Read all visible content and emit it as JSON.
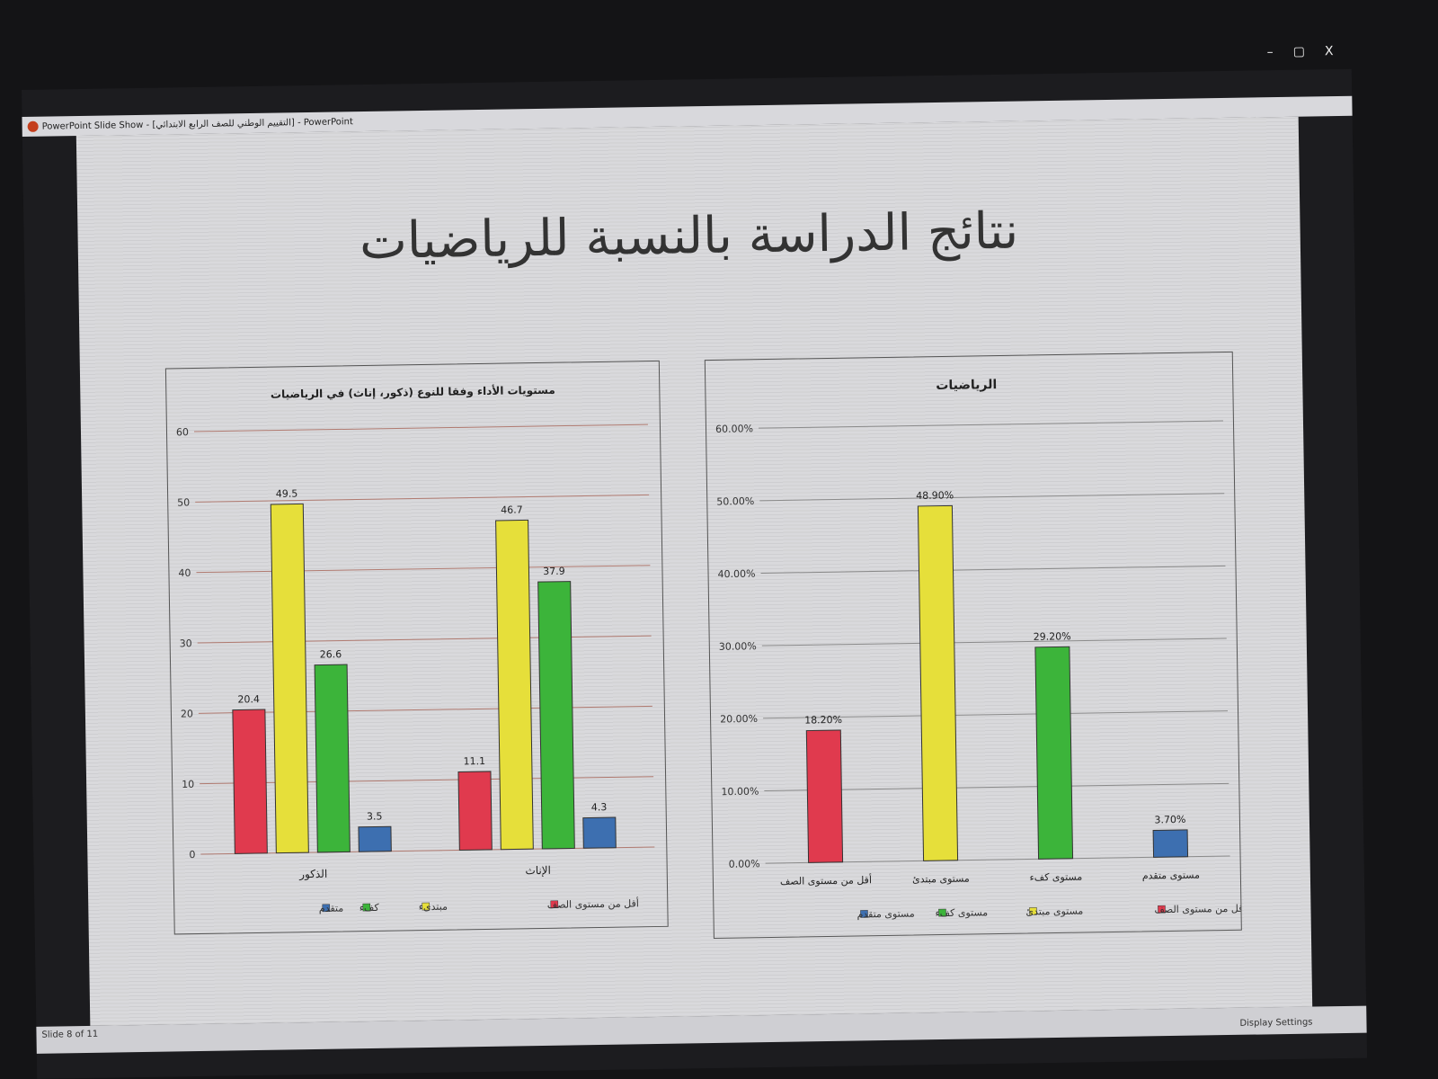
{
  "window": {
    "title": "PowerPoint Slide Show - [التقييم الوطني للصف الرابع الابتدائي] - PowerPoint",
    "minimize": "–",
    "restore": "▢",
    "close": "X"
  },
  "slide": {
    "title": "نتائج الدراسة بالنسبة للرياضيات"
  },
  "status": {
    "slide_counter": "Slide 8 of 11",
    "display_settings": "Display Settings"
  },
  "colors": {
    "red": "#e03a4e",
    "yellow": "#e6df3a",
    "green": "#3cb43a",
    "blue": "#3d6fb0"
  },
  "chart_data": [
    {
      "type": "bar",
      "title": "مستويات الأداء وفقا للنوع (ذكور، إناث) في الرياضيات",
      "categories": [
        "الذكور",
        "الإناث"
      ],
      "series": [
        {
          "name": "أقل من مستوى الصف",
          "values": [
            20.4,
            11.1
          ],
          "color": "#e03a4e"
        },
        {
          "name": "مبتدىء",
          "values": [
            49.5,
            46.7
          ],
          "color": "#e6df3a"
        },
        {
          "name": "كفء",
          "values": [
            26.6,
            37.9
          ],
          "color": "#3cb43a"
        },
        {
          "name": "متقدم",
          "values": [
            3.5,
            4.3
          ],
          "color": "#3d6fb0"
        }
      ],
      "ylim": [
        0,
        60
      ],
      "yticks": [
        "0",
        "10",
        "20",
        "30",
        "40",
        "50",
        "60"
      ],
      "grid": true,
      "legend": "bottom"
    },
    {
      "type": "bar",
      "title": "الرياضيات",
      "categories": [
        "أقل من مستوى الصف",
        "مستوى مبتدئ",
        "مستوى كفء",
        "مستوى متقدم"
      ],
      "values": [
        18.2,
        48.9,
        29.2,
        3.7
      ],
      "labels": [
        "18.20%",
        "48.90%",
        "29.20%",
        "3.70%"
      ],
      "colors": [
        "#e03a4e",
        "#e6df3a",
        "#3cb43a",
        "#3d6fb0"
      ],
      "ylim": [
        0,
        60
      ],
      "yticks": [
        "0.00%",
        "10.00%",
        "20.00%",
        "30.00%",
        "40.00%",
        "50.00%",
        "60.00%"
      ],
      "grid": true,
      "legend": "bottom"
    }
  ]
}
